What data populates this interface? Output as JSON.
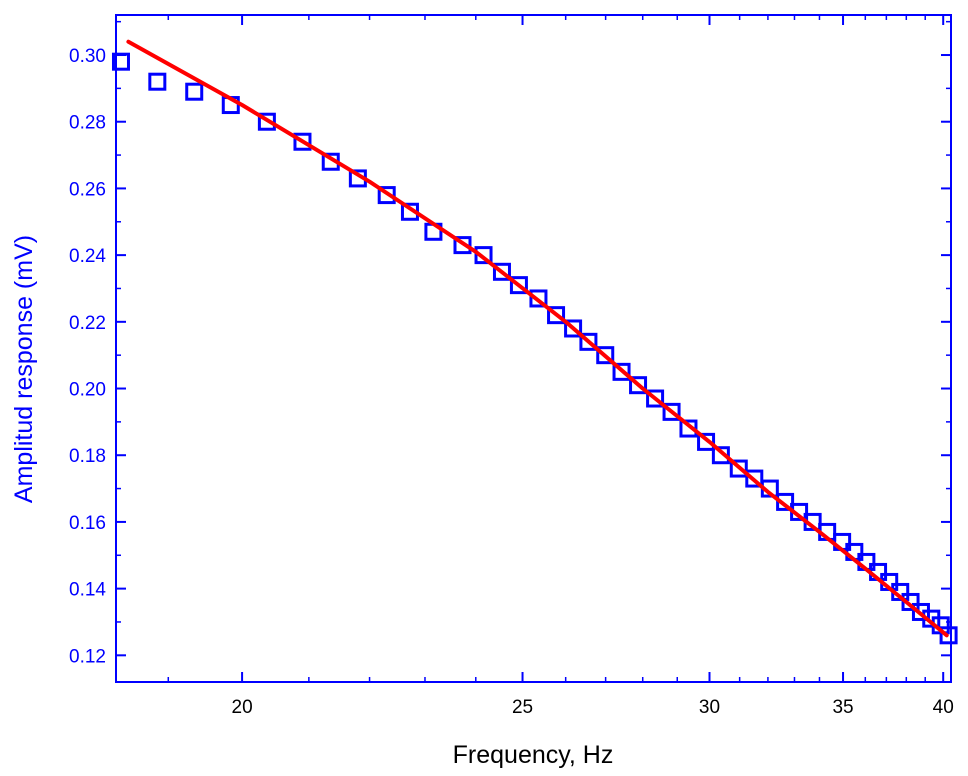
{
  "chart_data": {
    "type": "scatter",
    "title": "",
    "xlabel": "Frequency, Hz",
    "ylabel": "Amplitud response (mV)",
    "x_scale": "reciprocal",
    "xlim": [
      18.35,
      40.45
    ],
    "ylim": [
      0.112,
      0.312
    ],
    "x_ticks": [
      20,
      25,
      30,
      35,
      40
    ],
    "x_tick_labels": [
      "20",
      "25",
      "30",
      "35",
      "40"
    ],
    "y_ticks": [
      0.12,
      0.14,
      0.16,
      0.18,
      0.2,
      0.22,
      0.24,
      0.26,
      0.28,
      0.3
    ],
    "y_tick_labels": [
      "0.12",
      "0.14",
      "0.16",
      "0.18",
      "0.20",
      "0.22",
      "0.24",
      "0.26",
      "0.28",
      "0.30"
    ],
    "grid": false,
    "colors": {
      "axis": "#0000ff",
      "markers": "#0000ff",
      "fit": "#ff0000",
      "xlabel": "#000000"
    },
    "series": [
      {
        "kind": "markers",
        "marker": "open-square",
        "x": [
          18.41,
          18.86,
          19.34,
          19.84,
          20.36,
          20.9,
          21.35,
          21.8,
          22.3,
          22.72,
          23.16,
          23.73,
          24.16,
          24.55,
          24.92,
          25.36,
          25.77,
          26.18,
          26.56,
          26.99,
          27.42,
          27.87,
          28.35,
          28.83,
          29.34,
          29.89,
          30.37,
          30.97,
          31.51,
          32.07,
          32.64,
          33.18,
          33.72,
          34.32,
          34.96,
          35.5,
          36.05,
          36.6,
          37.14,
          37.69,
          38.22,
          38.77,
          39.33,
          39.86,
          40.31
        ],
        "y": [
          0.298,
          0.292,
          0.289,
          0.285,
          0.28,
          0.274,
          0.268,
          0.263,
          0.258,
          0.253,
          0.247,
          0.243,
          0.24,
          0.235,
          0.231,
          0.227,
          0.222,
          0.218,
          0.214,
          0.21,
          0.205,
          0.201,
          0.197,
          0.193,
          0.188,
          0.184,
          0.18,
          0.176,
          0.173,
          0.17,
          0.166,
          0.163,
          0.16,
          0.157,
          0.154,
          0.151,
          0.148,
          0.145,
          0.142,
          0.139,
          0.136,
          0.133,
          0.131,
          0.129,
          0.126
        ]
      },
      {
        "kind": "fit-line",
        "x": [
          18.5,
          20,
          22,
          24,
          26,
          28,
          30,
          32,
          34,
          36,
          38,
          40.2
        ],
        "y": [
          0.304,
          0.285,
          0.262,
          0.241,
          0.22,
          0.2,
          0.184,
          0.169,
          0.157,
          0.146,
          0.136,
          0.126
        ]
      }
    ]
  }
}
